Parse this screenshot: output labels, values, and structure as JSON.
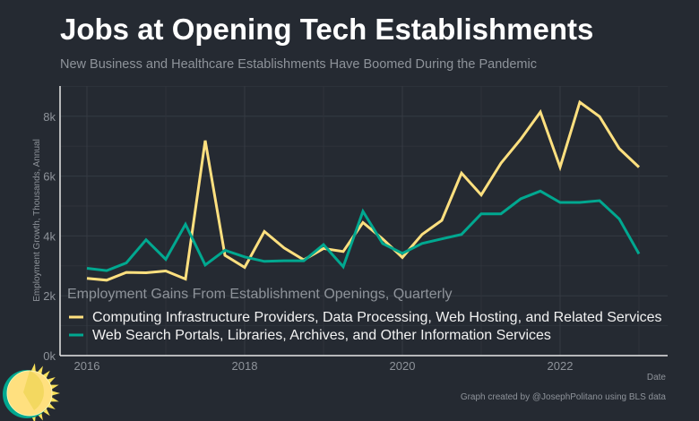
{
  "title": "Jobs at Opening Tech Establishments",
  "subtitle": "New Business and Healthcare Establishments Have Boomed During the Pandemic",
  "credit": "Graph created by @JosephPolitano using BLS data",
  "chart_data": {
    "type": "line",
    "ylabel": "Employment Growth, Thousands, Annual",
    "xlabel": "Date",
    "x_ticks": [
      "2016",
      "2018",
      "2020",
      "2022"
    ],
    "y_ticks": [
      "0k",
      "2k",
      "4k",
      "6k",
      "8k"
    ],
    "ylim": [
      0,
      9
    ],
    "xlim": [
      "2015-Q3",
      "2023-Q3"
    ],
    "grid": true,
    "legend_title": "Employment Gains From Establishment Openings, Quarterly",
    "legend_position": "bottom-left-inside",
    "x": [
      "2016-Q1",
      "2016-Q2",
      "2016-Q3",
      "2016-Q4",
      "2017-Q1",
      "2017-Q2",
      "2017-Q3",
      "2017-Q4",
      "2018-Q1",
      "2018-Q2",
      "2018-Q3",
      "2018-Q4",
      "2019-Q1",
      "2019-Q2",
      "2019-Q3",
      "2019-Q4",
      "2020-Q1",
      "2020-Q2",
      "2020-Q3",
      "2020-Q4",
      "2021-Q1",
      "2021-Q2",
      "2021-Q3",
      "2021-Q4",
      "2022-Q1",
      "2022-Q2",
      "2022-Q3",
      "2022-Q4",
      "2023-Q1"
    ],
    "series": [
      {
        "name": "Computing Infrastructure Providers, Data Processing, Web Hosting, and Related Services",
        "color": "#ffe07f",
        "values": [
          2.58,
          2.52,
          2.78,
          2.77,
          2.83,
          2.56,
          7.19,
          3.35,
          2.95,
          4.15,
          3.6,
          3.2,
          3.58,
          3.48,
          4.45,
          3.9,
          3.28,
          4.05,
          4.52,
          6.1,
          5.37,
          6.43,
          7.23,
          8.14,
          6.3,
          8.47,
          7.99,
          6.92,
          6.3
        ]
      },
      {
        "name": "Web Search Portals, Libraries, Archives, and Other Information Services",
        "color": "#00a890",
        "values": [
          2.92,
          2.84,
          3.1,
          3.87,
          3.22,
          4.39,
          3.03,
          3.52,
          3.3,
          3.15,
          3.17,
          3.17,
          3.71,
          2.97,
          4.82,
          3.75,
          3.42,
          3.75,
          3.9,
          4.05,
          4.74,
          4.74,
          5.24,
          5.5,
          5.12,
          5.12,
          5.18,
          4.57,
          3.4
        ]
      }
    ]
  }
}
